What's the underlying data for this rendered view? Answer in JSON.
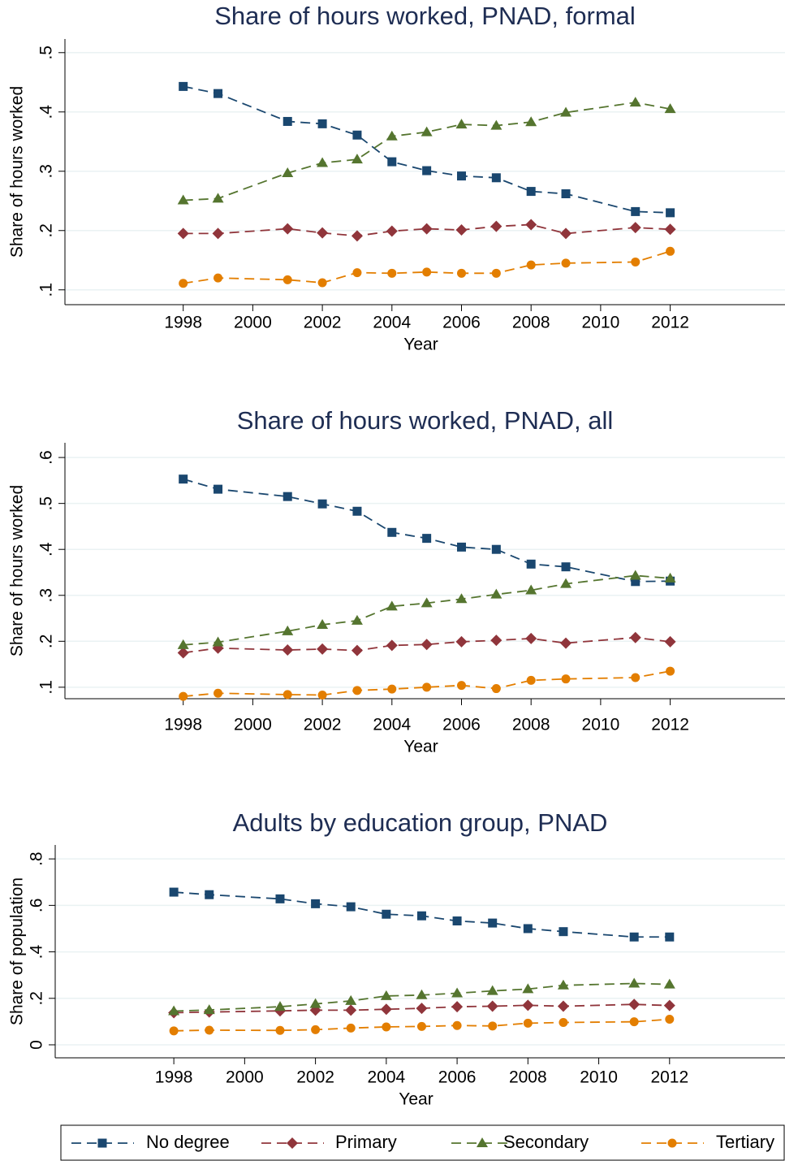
{
  "chart_data": [
    {
      "type": "line",
      "title": "Share of hours worked, PNAD, formal",
      "x_label": "Year",
      "y_label": "Share of hours worked",
      "legend": "bottom",
      "grid": true,
      "x": [
        1998,
        1999,
        2001,
        2002,
        2003,
        2004,
        2005,
        2006,
        2007,
        2008,
        2009,
        2011,
        2012
      ],
      "xlim": [
        1994.6,
        2015.3
      ],
      "xticks": [
        1998,
        2000,
        2002,
        2004,
        2006,
        2008,
        2010,
        2012
      ],
      "ylim": [
        0.075,
        0.523
      ],
      "yticks": [
        {
          "value": 0.1,
          "label": ".1"
        },
        {
          "value": 0.2,
          "label": ".2"
        },
        {
          "value": 0.3,
          "label": ".3"
        },
        {
          "value": 0.4,
          "label": ".4"
        },
        {
          "value": 0.5,
          "label": ".5"
        }
      ],
      "series": [
        {
          "name": "No degree",
          "color": "#1a476f",
          "marker": "square",
          "values": [
            0.443,
            0.431,
            0.384,
            0.38,
            0.361,
            0.316,
            0.301,
            0.292,
            0.289,
            0.266,
            0.262,
            0.232,
            0.23
          ]
        },
        {
          "name": "Primary",
          "color": "#90353b",
          "marker": "diamond",
          "values": [
            0.195,
            0.195,
            0.203,
            0.196,
            0.191,
            0.199,
            0.203,
            0.201,
            0.207,
            0.21,
            0.195,
            0.205,
            0.202
          ]
        },
        {
          "name": "Secondary",
          "color": "#55752f",
          "marker": "triangle",
          "values": [
            0.251,
            0.254,
            0.297,
            0.314,
            0.32,
            0.359,
            0.366,
            0.379,
            0.377,
            0.383,
            0.399,
            0.416,
            0.405
          ]
        },
        {
          "name": "Tertiary",
          "color": "#e37e00",
          "marker": "circle",
          "values": [
            0.111,
            0.12,
            0.117,
            0.112,
            0.129,
            0.128,
            0.13,
            0.128,
            0.128,
            0.142,
            0.145,
            0.147,
            0.165
          ]
        }
      ]
    },
    {
      "type": "line",
      "title": "Share of hours worked, PNAD, all",
      "x_label": "Year",
      "y_label": "Share of hours worked",
      "grid": true,
      "x": [
        1998,
        1999,
        2001,
        2002,
        2003,
        2004,
        2005,
        2006,
        2007,
        2008,
        2009,
        2011,
        2012
      ],
      "xlim": [
        1994.6,
        2015.3
      ],
      "xticks": [
        1998,
        2000,
        2002,
        2004,
        2006,
        2008,
        2010,
        2012
      ],
      "ylim": [
        0.075,
        0.632
      ],
      "yticks": [
        {
          "value": 0.1,
          "label": ".1"
        },
        {
          "value": 0.2,
          "label": ".2"
        },
        {
          "value": 0.3,
          "label": ".3"
        },
        {
          "value": 0.4,
          "label": ".4"
        },
        {
          "value": 0.5,
          "label": ".5"
        },
        {
          "value": 0.6,
          "label": ".6"
        }
      ],
      "series": [
        {
          "color": "#1a476f",
          "marker": "square",
          "values": [
            0.553,
            0.531,
            0.515,
            0.499,
            0.483,
            0.437,
            0.424,
            0.405,
            0.4,
            0.368,
            0.362,
            0.33,
            0.331
          ]
        },
        {
          "color": "#90353b",
          "marker": "diamond",
          "values": [
            0.175,
            0.185,
            0.181,
            0.183,
            0.18,
            0.191,
            0.193,
            0.199,
            0.202,
            0.206,
            0.196,
            0.208,
            0.199
          ]
        },
        {
          "color": "#55752f",
          "marker": "triangle",
          "values": [
            0.192,
            0.198,
            0.222,
            0.236,
            0.245,
            0.276,
            0.283,
            0.292,
            0.302,
            0.311,
            0.325,
            0.343,
            0.337
          ]
        },
        {
          "color": "#e37e00",
          "marker": "circle",
          "values": [
            0.08,
            0.087,
            0.084,
            0.083,
            0.093,
            0.096,
            0.1,
            0.104,
            0.097,
            0.115,
            0.118,
            0.121,
            0.135
          ]
        }
      ]
    },
    {
      "type": "line",
      "title": "Adults by education group, PNAD",
      "x_label": "Year",
      "y_label": "Share of population",
      "grid": true,
      "x": [
        1998,
        1999,
        2001,
        2002,
        2003,
        2004,
        2005,
        2006,
        2007,
        2008,
        2009,
        2011,
        2012
      ],
      "xlim": [
        1994.65,
        2015.26
      ],
      "xticks": [
        1998,
        2000,
        2002,
        2004,
        2006,
        2008,
        2010,
        2012
      ],
      "ylim": [
        -0.056,
        0.86
      ],
      "yticks": [
        0,
        {
          "value": 0.2,
          "label": ".2"
        },
        {
          "value": 0.4,
          "label": ".4"
        },
        {
          "value": 0.6,
          "label": ".6"
        },
        {
          "value": 0.8,
          "label": ".8"
        }
      ],
      "series": [
        {
          "color": "#1a476f",
          "marker": "square",
          "values": [
            0.657,
            0.646,
            0.628,
            0.607,
            0.594,
            0.562,
            0.555,
            0.533,
            0.524,
            0.5,
            0.487,
            0.464,
            0.464
          ]
        },
        {
          "color": "#90353b",
          "marker": "diamond",
          "values": [
            0.138,
            0.141,
            0.146,
            0.149,
            0.149,
            0.153,
            0.157,
            0.164,
            0.166,
            0.17,
            0.166,
            0.174,
            0.169
          ]
        },
        {
          "color": "#55752f",
          "marker": "triangle",
          "values": [
            0.145,
            0.15,
            0.164,
            0.176,
            0.189,
            0.21,
            0.214,
            0.222,
            0.232,
            0.24,
            0.256,
            0.264,
            0.26
          ]
        },
        {
          "color": "#e37e00",
          "marker": "circle",
          "values": [
            0.06,
            0.063,
            0.062,
            0.065,
            0.072,
            0.077,
            0.079,
            0.083,
            0.081,
            0.093,
            0.096,
            0.099,
            0.11
          ]
        }
      ]
    }
  ]
}
